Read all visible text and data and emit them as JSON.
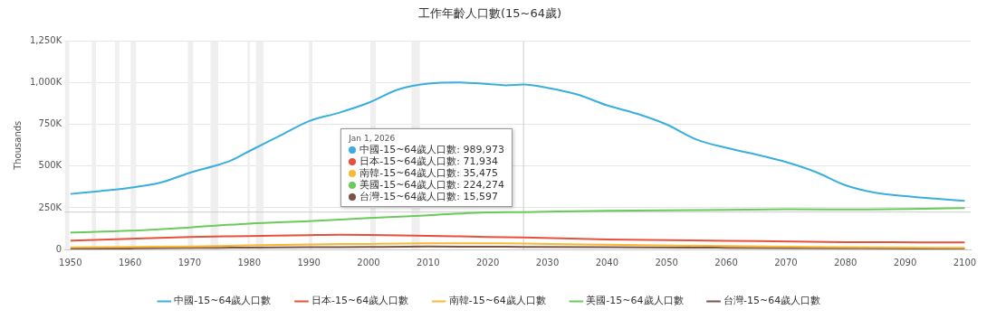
{
  "chart_data": {
    "type": "line",
    "title": "工作年齡人口數(15~64歲)",
    "ylabel": "Thousands",
    "xlim": [
      1949,
      2101
    ],
    "xticks": [
      1950,
      1960,
      1970,
      1980,
      1990,
      2000,
      2010,
      2020,
      2030,
      2040,
      2050,
      2060,
      2070,
      2080,
      2090,
      2100
    ],
    "ylim": [
      0,
      1250000
    ],
    "yticks": [
      0,
      {
        "value": 250000,
        "label": "250K"
      },
      {
        "value": 500000,
        "label": "500K"
      },
      {
        "value": 750000,
        "label": "750K"
      },
      {
        "value": 1000000,
        "label": "1,000K"
      },
      {
        "value": 1250000,
        "label": "1,250K"
      }
    ],
    "grid": "y",
    "legend": "bottom",
    "marker": "none",
    "line_style": "solid",
    "series": [
      {
        "name": "中國-15~64歲人口數",
        "color": "#3aaedc",
        "x": [
          1950,
          1955,
          1960,
          1965,
          1970,
          1975,
          1977,
          1980,
          1985,
          1990,
          1995,
          2000,
          2005,
          2010,
          2015,
          2020,
          2023,
          2026,
          2030,
          2035,
          2040,
          2045,
          2050,
          2055,
          2060,
          2065,
          2070,
          2075,
          2080,
          2085,
          2090,
          2095,
          2100
        ],
        "values": [
          333000,
          350000,
          370000,
          400000,
          460000,
          510000,
          535000,
          590000,
          680000,
          770000,
          820000,
          880000,
          960000,
          995000,
          1003000,
          993000,
          985000,
          989973,
          970000,
          930000,
          865000,
          815000,
          750000,
          660000,
          610000,
          570000,
          525000,
          465000,
          385000,
          340000,
          320000,
          305000,
          292000
        ]
      },
      {
        "name": "日本-15~64歲人口數",
        "color": "#e8503a",
        "x": [
          1950,
          1960,
          1970,
          1980,
          1990,
          1995,
          2000,
          2010,
          2020,
          2026,
          2040,
          2060,
          2080,
          2100
        ],
        "values": [
          52000,
          64000,
          75000,
          80000,
          86000,
          88000,
          87000,
          82000,
          75000,
          71934,
          60000,
          52000,
          44000,
          42000
        ]
      },
      {
        "name": "南韓-15~64歲人口數",
        "color": "#f9b935",
        "x": [
          1950,
          1960,
          1970,
          1980,
          1990,
          2000,
          2010,
          2020,
          2026,
          2040,
          2060,
          2080,
          2100
        ],
        "values": [
          12000,
          15000,
          18000,
          24000,
          30000,
          33000,
          36000,
          37000,
          35475,
          28000,
          20000,
          14000,
          10000
        ]
      },
      {
        "name": "美國-15~64歲人口數",
        "color": "#6acb5a",
        "x": [
          1950,
          1960,
          1970,
          1980,
          1990,
          2000,
          2010,
          2020,
          2026,
          2040,
          2060,
          2070,
          2080,
          2100
        ],
        "values": [
          102000,
          112000,
          132000,
          155000,
          170000,
          188000,
          205000,
          222000,
          224274,
          232000,
          238000,
          241000,
          240000,
          248000
        ]
      },
      {
        "name": "台灣-15~64歲人口數",
        "color": "#7a5346",
        "x": [
          1950,
          1960,
          1970,
          1980,
          1990,
          2000,
          2010,
          2020,
          2026,
          2040,
          2060,
          2080,
          2100
        ],
        "values": [
          5000,
          6000,
          9000,
          11000,
          13000,
          15000,
          17000,
          16500,
          15597,
          13000,
          10000,
          7000,
          5000
        ]
      }
    ],
    "bands": [
      {
        "axis": "x",
        "from": 1949.1,
        "to": 1949.8,
        "color": "#efefef"
      },
      {
        "axis": "x",
        "from": 1953.6,
        "to": 1954.3,
        "color": "#efefef"
      },
      {
        "axis": "x",
        "from": 1957.5,
        "to": 1958.2,
        "color": "#efefef"
      },
      {
        "axis": "x",
        "from": 1960.1,
        "to": 1961,
        "color": "#efefef"
      },
      {
        "axis": "x",
        "from": 1969.7,
        "to": 1970.6,
        "color": "#efefef"
      },
      {
        "axis": "x",
        "from": 1973.5,
        "to": 1974.8,
        "color": "#efefef"
      },
      {
        "axis": "x",
        "from": 1979.7,
        "to": 1980.1,
        "color": "#efefef"
      },
      {
        "axis": "x",
        "from": 1981.1,
        "to": 1982.4,
        "color": "#efefef"
      },
      {
        "axis": "x",
        "from": 1990,
        "to": 1990.6,
        "color": "#efefef"
      },
      {
        "axis": "x",
        "from": 2000.3,
        "to": 2001.2,
        "color": "#efefef"
      },
      {
        "axis": "x",
        "from": 2007.2,
        "to": 2008.6,
        "color": "#efefef"
      }
    ],
    "ref_lines": [
      {
        "axis": "x",
        "value": 2026,
        "color": "#cccccc"
      },
      {
        "axis": "y",
        "value": 224274,
        "color": "#cccccc"
      }
    ],
    "annotations": [
      "Jan 1, 2026",
      "中國-15~64歲人口數: 989,973",
      "日本-15~64歲人口數: 71,934",
      "南韓-15~64歲人口數: 35,475",
      "美國-15~64歲人口數: 224,274",
      "台灣-15~64歲人口數: 15,597"
    ]
  }
}
